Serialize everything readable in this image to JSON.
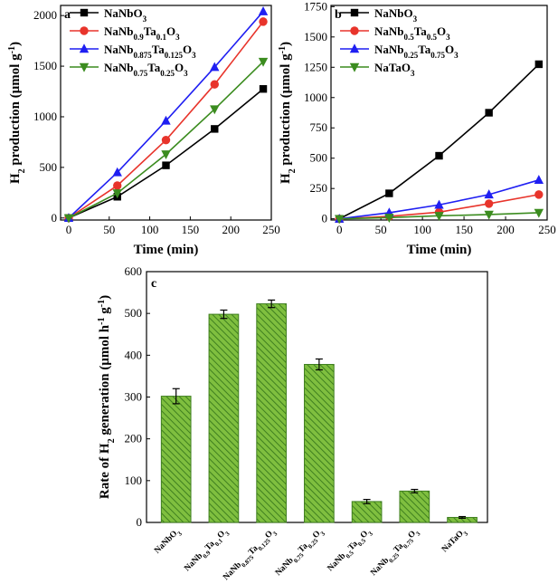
{
  "colors": {
    "NaNbO3": "#000000",
    "NaNb0.9Ta0.1O3": "#e8342b",
    "NaNb0.875Ta0.125O3": "#1f1ff2",
    "NaNb0.75Ta0.25O3": "#3b8c1f",
    "NaNb0.5Ta0.5O3": "#e8342b",
    "NaNb0.25Ta0.75O3": "#1f1ff2",
    "NaTaO3": "#3b8c1f",
    "bar_fill": "#7fbf3f",
    "bar_hatch": "#3f7f1f"
  },
  "chart_data": [
    {
      "panel": "a",
      "type": "line",
      "xlabel": "Time (min)",
      "ylabel": "H2 production (μmol g-1)",
      "xlim": [
        -10,
        250
      ],
      "ylim": [
        -20,
        2100
      ],
      "xticks": [
        0,
        50,
        100,
        150,
        200,
        250
      ],
      "yticks": [
        0,
        500,
        1000,
        1500,
        2000
      ],
      "legend_position": "top-left",
      "x": [
        0,
        60,
        120,
        180,
        240
      ],
      "series": [
        {
          "name": "NaNbO3",
          "marker": "square",
          "values": [
            0,
            210,
            520,
            880,
            1275
          ]
        },
        {
          "name": "NaNb0.9Ta0.1O3",
          "marker": "circle",
          "values": [
            0,
            320,
            770,
            1320,
            1940
          ]
        },
        {
          "name": "NaNb0.875Ta0.125O3",
          "marker": "triangle-up",
          "values": [
            0,
            450,
            960,
            1490,
            2040
          ]
        },
        {
          "name": "NaNb0.75Ta0.25O3",
          "marker": "triangle-down",
          "values": [
            0,
            245,
            630,
            1075,
            1545
          ]
        }
      ]
    },
    {
      "panel": "b",
      "type": "line",
      "xlabel": "Time (min)",
      "ylabel": "H2 production (μmol g-1)",
      "xlim": [
        -10,
        250
      ],
      "ylim": [
        -10,
        1760
      ],
      "xticks": [
        0,
        50,
        100,
        150,
        200,
        250
      ],
      "yticks": [
        0,
        250,
        500,
        750,
        1000,
        1250,
        1500,
        1750
      ],
      "legend_position": "top-left",
      "x": [
        0,
        60,
        120,
        180,
        240
      ],
      "series": [
        {
          "name": "NaNbO3",
          "marker": "square",
          "values": [
            0,
            210,
            520,
            875,
            1275
          ]
        },
        {
          "name": "NaNb0.5Ta0.5O3",
          "marker": "circle",
          "values": [
            0,
            20,
            55,
            125,
            200
          ]
        },
        {
          "name": "NaNb0.25Ta0.75O3",
          "marker": "triangle-up",
          "values": [
            0,
            50,
            115,
            200,
            320
          ]
        },
        {
          "name": "NaTaO3",
          "marker": "triangle-down",
          "values": [
            0,
            10,
            25,
            35,
            50
          ]
        }
      ]
    },
    {
      "panel": "c",
      "type": "bar",
      "ylabel": "Rate of H2 generation (μmol h-1 g-1)",
      "ylim": [
        0,
        600
      ],
      "yticks": [
        0,
        100,
        200,
        300,
        400,
        500,
        600
      ],
      "categories": [
        "NaNbO3",
        "NaNb0.9Ta0.1O3",
        "NaNb0.875Ta0.125O3",
        "NaNb0.75Ta0.25O3",
        "NaNb0.5Ta0.5O3",
        "NaNb0.25Ta0.75O3",
        "NaTaO3"
      ],
      "values": [
        302,
        498,
        523,
        378,
        50,
        75,
        12
      ],
      "errors": [
        18,
        10,
        9,
        13,
        5,
        4,
        2
      ]
    }
  ]
}
